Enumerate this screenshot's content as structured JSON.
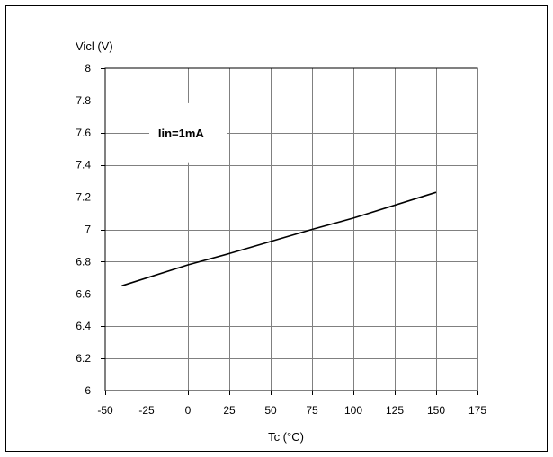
{
  "chart_data": {
    "type": "line",
    "title": "",
    "xlabel": "Tc (°C)",
    "ylabel": "Vicl (V)",
    "xlim": [
      -50,
      175
    ],
    "ylim": [
      6,
      8
    ],
    "x_ticks": [
      -50,
      -25,
      0,
      25,
      50,
      75,
      100,
      125,
      150,
      175
    ],
    "y_ticks": [
      6,
      6.2,
      6.4,
      6.6,
      6.8,
      7,
      7.2,
      7.4,
      7.6,
      7.8,
      8
    ],
    "x_tick_labels": [
      "-50",
      "-25",
      "0",
      "25",
      "50",
      "75",
      "100",
      "125",
      "150",
      "175"
    ],
    "y_tick_labels": [
      "6",
      "6.2",
      "6.4",
      "6.6",
      "6.8",
      "7",
      "7.2",
      "7.4",
      "7.6",
      "7.8",
      "8"
    ],
    "grid": true,
    "legend": "none",
    "annotation": "Iin=1mA",
    "series": [
      {
        "x": [
          -40,
          0,
          25,
          75,
          100,
          150
        ],
        "y": [
          6.65,
          6.78,
          6.85,
          7.0,
          7.07,
          7.23
        ],
        "color": "#000000"
      }
    ]
  }
}
